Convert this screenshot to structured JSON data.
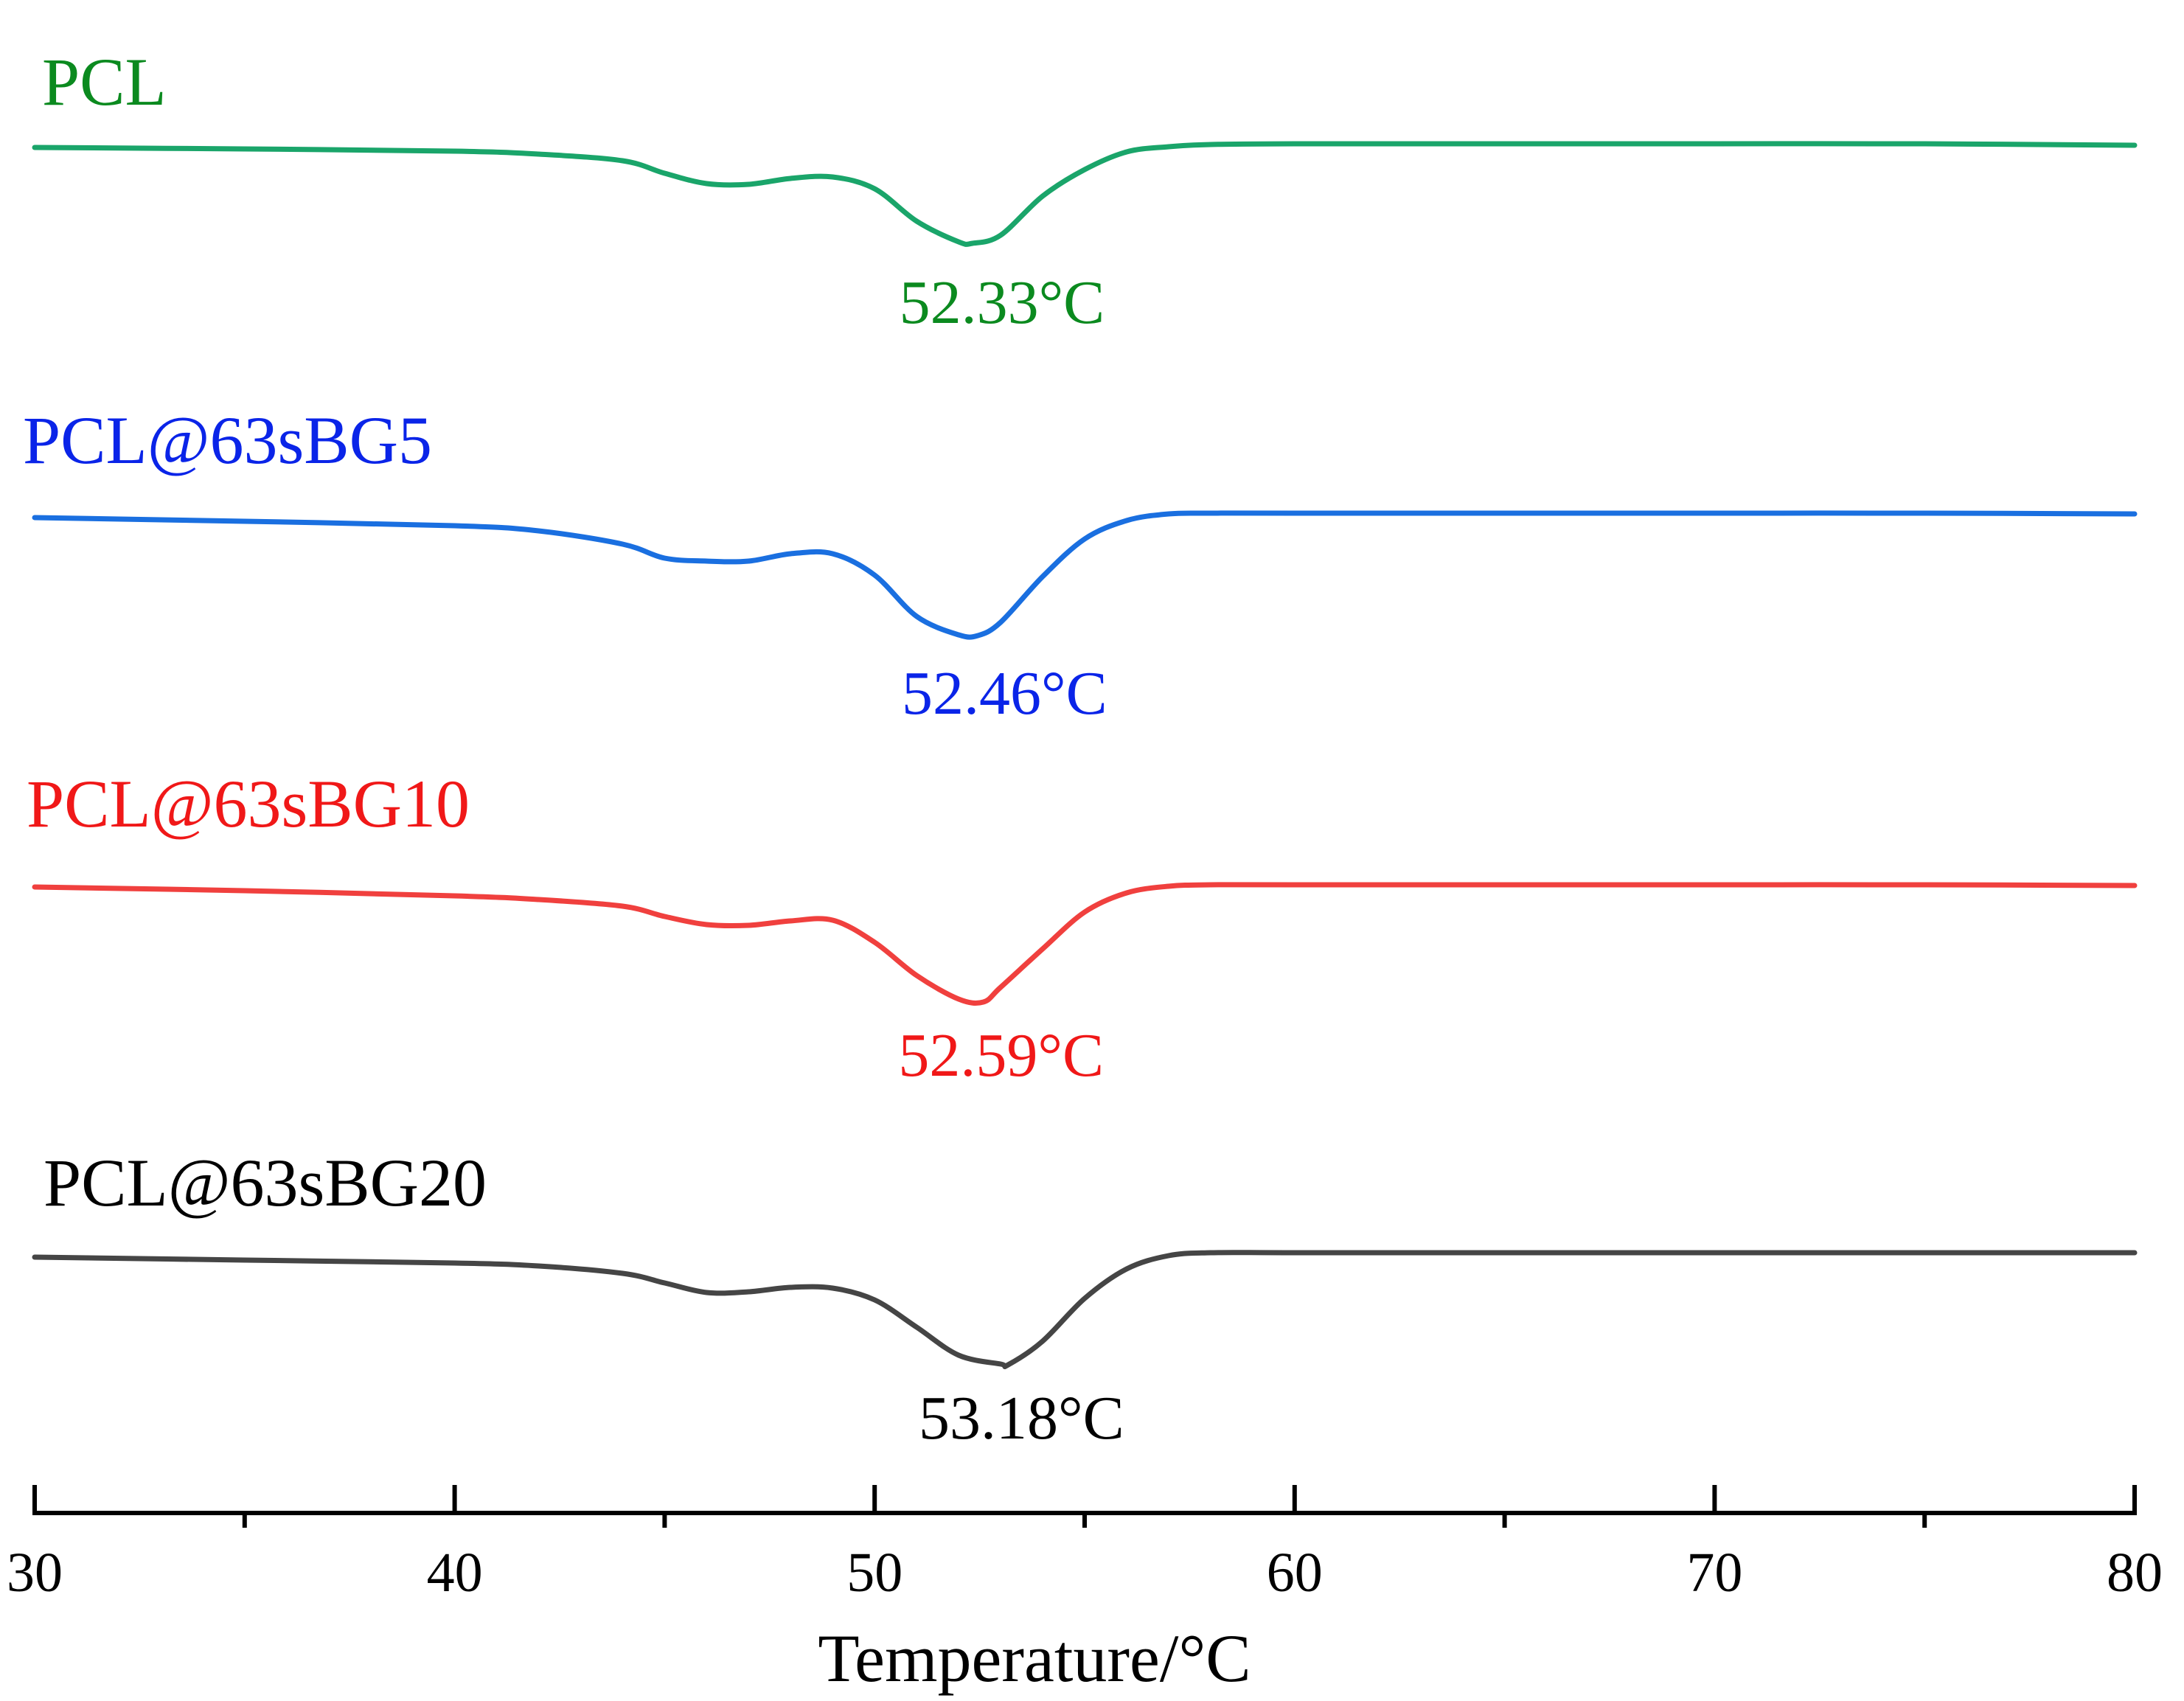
{
  "chart_data": {
    "type": "line",
    "title": "",
    "xlabel": "Temperature/°C",
    "ylabel": "",
    "xlim": [
      30,
      80
    ],
    "x_ticks": [
      30,
      40,
      50,
      60,
      70,
      80
    ],
    "x_minor_ticks": [
      35,
      45,
      55,
      65,
      75
    ],
    "x_tick_labels": [
      "30",
      "40",
      "50",
      "60",
      "70",
      "80"
    ],
    "y_units": "arbitrary heat-flow offset (stacked curves)",
    "series": [
      {
        "name": "PCL",
        "color": "#1aa56a",
        "label_color": "#0b8a1f",
        "peak_label": "52.33°C",
        "x": [
          30,
          35,
          40,
          42,
          44,
          45,
          46,
          47,
          48,
          49,
          50,
          51,
          52,
          52.33,
          53,
          54,
          55,
          56,
          57,
          58,
          60,
          65,
          70,
          75,
          80
        ],
        "y": [
          0,
          -0.2,
          -0.5,
          -0.9,
          -1.8,
          -3.5,
          -4.9,
          -5.0,
          -4.2,
          -4.0,
          -5.6,
          -10.0,
          -12.8,
          -13.0,
          -11.9,
          -6.6,
          -3.0,
          -0.6,
          0.1,
          0.4,
          0.5,
          0.5,
          0.5,
          0.5,
          0.3
        ]
      },
      {
        "name": "PCL@63sBG5",
        "color": "#1a6fe0",
        "label_color": "#0a24e8",
        "peak_label": "52.46°C",
        "x": [
          30,
          35,
          40,
          42,
          44,
          45,
          46,
          47,
          48,
          49,
          50,
          51,
          52,
          52.46,
          53,
          54,
          55,
          56,
          57,
          58,
          60,
          65,
          70,
          75,
          80
        ],
        "y": [
          0,
          -0.5,
          -1.1,
          -1.8,
          -3.6,
          -5.5,
          -5.9,
          -5.9,
          -4.9,
          -4.9,
          -7.8,
          -13.4,
          -15.9,
          -16.0,
          -14.2,
          -8.0,
          -2.9,
          -0.4,
          0.5,
          0.6,
          0.6,
          0.6,
          0.6,
          0.6,
          0.5
        ]
      },
      {
        "name": "PCL@63sBG10",
        "color": "#f0403e",
        "label_color": "#f01818",
        "peak_label": "52.59°C",
        "x": [
          30,
          35,
          40,
          42,
          44,
          45,
          46,
          47,
          48,
          49,
          50,
          51,
          52,
          52.59,
          53,
          54,
          55,
          56,
          57,
          58,
          60,
          65,
          70,
          75,
          80
        ],
        "y": [
          0,
          -0.5,
          -1.2,
          -1.7,
          -2.6,
          -4.0,
          -5.1,
          -5.2,
          -4.6,
          -4.5,
          -7.5,
          -12.0,
          -15.2,
          -15.6,
          -13.6,
          -8.4,
          -3.4,
          -0.8,
          0.1,
          0.3,
          0.3,
          0.3,
          0.3,
          0.3,
          0.2
        ]
      },
      {
        "name": "PCL@63sBG20",
        "color": "#454545",
        "label_color": "#000000",
        "peak_label": "53.18°C",
        "x": [
          30,
          35,
          40,
          42,
          44,
          45,
          46,
          47,
          48,
          49,
          50,
          51,
          52,
          53,
          53.18,
          54,
          55,
          56,
          57,
          58,
          60,
          65,
          70,
          75,
          80
        ],
        "y": [
          0,
          -0.4,
          -0.8,
          -1.2,
          -2.2,
          -3.5,
          -4.8,
          -4.7,
          -4.1,
          -4.2,
          -5.8,
          -9.5,
          -13.3,
          -14.5,
          -14.6,
          -11.4,
          -5.6,
          -1.6,
          0.2,
          0.6,
          0.6,
          0.6,
          0.6,
          0.6,
          0.6
        ]
      }
    ]
  }
}
